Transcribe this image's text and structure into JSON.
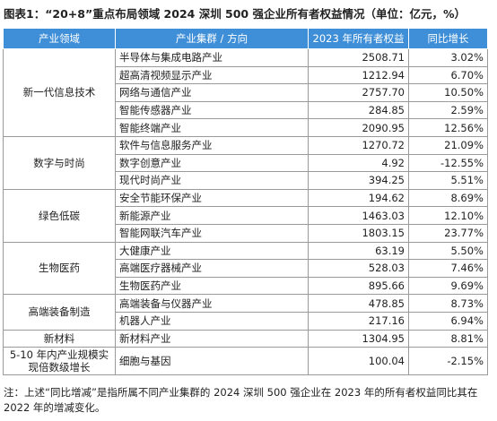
{
  "title": "图表1：“20+8”重点布局领域 2024 深圳 500 强企业所有者权益情况（单位：亿元，%）",
  "table": {
    "header": [
      "产业领域",
      "产业集群 / 方向",
      "2023 年所有者权益",
      "同比增长"
    ],
    "groups": [
      {
        "sector": "新一代信息技术",
        "rows": [
          [
            "半导体与集成电路产业",
            "2508.71",
            "3.02%"
          ],
          [
            "超高清视频显示产业",
            "1212.94",
            "6.70%"
          ],
          [
            "网络与通信产业",
            "2757.70",
            "10.50%"
          ],
          [
            "智能传感器产业",
            "284.85",
            "2.59%"
          ],
          [
            "智能终端产业",
            "2090.95",
            "12.56%"
          ]
        ]
      },
      {
        "sector": "数字与时尚",
        "rows": [
          [
            "软件与信息服务产业",
            "1270.72",
            "21.09%"
          ],
          [
            "数字创意产业",
            "4.92",
            "-12.55%"
          ],
          [
            "现代时尚产业",
            "394.25",
            "5.51%"
          ]
        ]
      },
      {
        "sector": "绿色低碳",
        "rows": [
          [
            "安全节能环保产业",
            "194.62",
            "8.69%"
          ],
          [
            "新能源产业",
            "1463.03",
            "12.10%"
          ],
          [
            "智能网联汽车产业",
            "1803.15",
            "23.77%"
          ]
        ]
      },
      {
        "sector": "生物医药",
        "rows": [
          [
            "大健康产业",
            "63.19",
            "5.50%"
          ],
          [
            "高端医疗器械产业",
            "528.03",
            "7.46%"
          ],
          [
            "生物医药产业",
            "895.66",
            "9.69%"
          ]
        ]
      },
      {
        "sector": "高端装备制造",
        "rows": [
          [
            "高端装备与仪器产业",
            "478.85",
            "8.73%"
          ],
          [
            "机器人产业",
            "217.16",
            "6.94%"
          ]
        ]
      },
      {
        "sector": "新材料",
        "rows": [
          [
            "新材料产业",
            "1304.95",
            "8.81%"
          ]
        ]
      },
      {
        "sector": "5-10 年内产业规模实现倍数级增长",
        "rows": [
          [
            "细胞与基因",
            "100.04",
            "-2.15%"
          ]
        ]
      }
    ]
  },
  "note": "注：上述“同比增减”是指所属不同产业集群的 2024 深圳 500 强企业在 2023 年的所有者权益同比其在 2022 年的增减变化。"
}
